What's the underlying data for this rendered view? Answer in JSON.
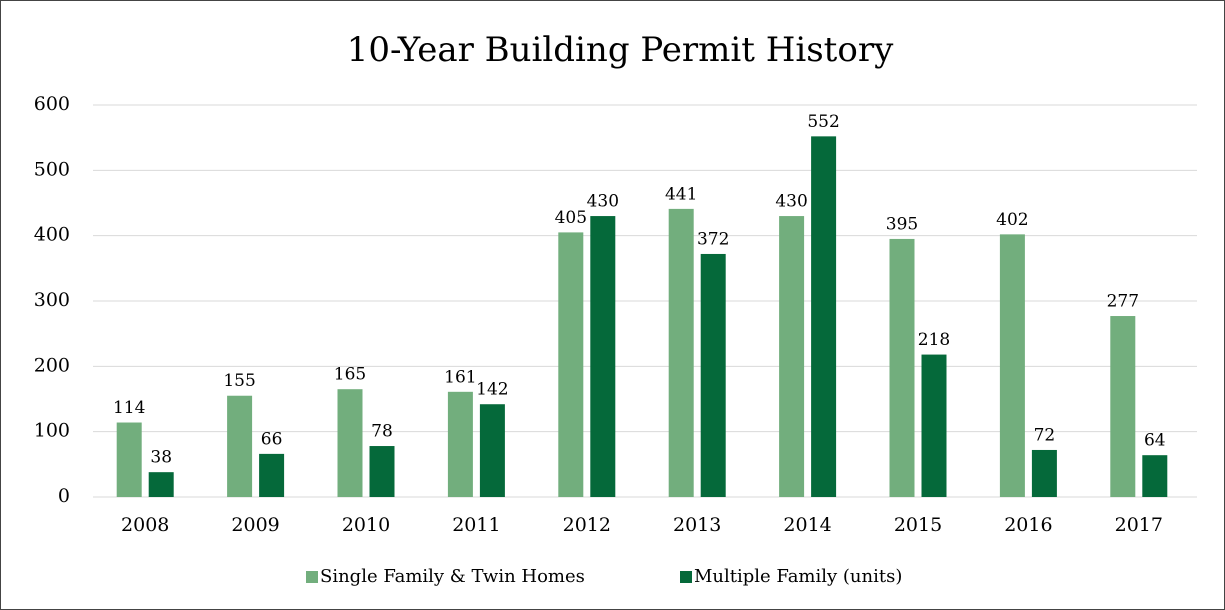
{
  "chart_data": {
    "type": "bar",
    "title": "10-Year Building Permit History",
    "categories": [
      "2008",
      "2009",
      "2010",
      "2011",
      "2012",
      "2013",
      "2014",
      "2015",
      "2016",
      "2017"
    ],
    "series": [
      {
        "name": "Single Family & Twin Homes",
        "color": "#72ae7d",
        "values": [
          114,
          155,
          165,
          161,
          405,
          441,
          430,
          395,
          402,
          277
        ]
      },
      {
        "name": "Multiple Family (units)",
        "color": "#05693a",
        "values": [
          38,
          66,
          78,
          142,
          430,
          372,
          552,
          218,
          72,
          64
        ]
      }
    ],
    "ylim": [
      0,
      600
    ],
    "yticks": [
      0,
      100,
      200,
      300,
      400,
      500,
      600
    ],
    "grid": true,
    "legend": "bottom"
  }
}
